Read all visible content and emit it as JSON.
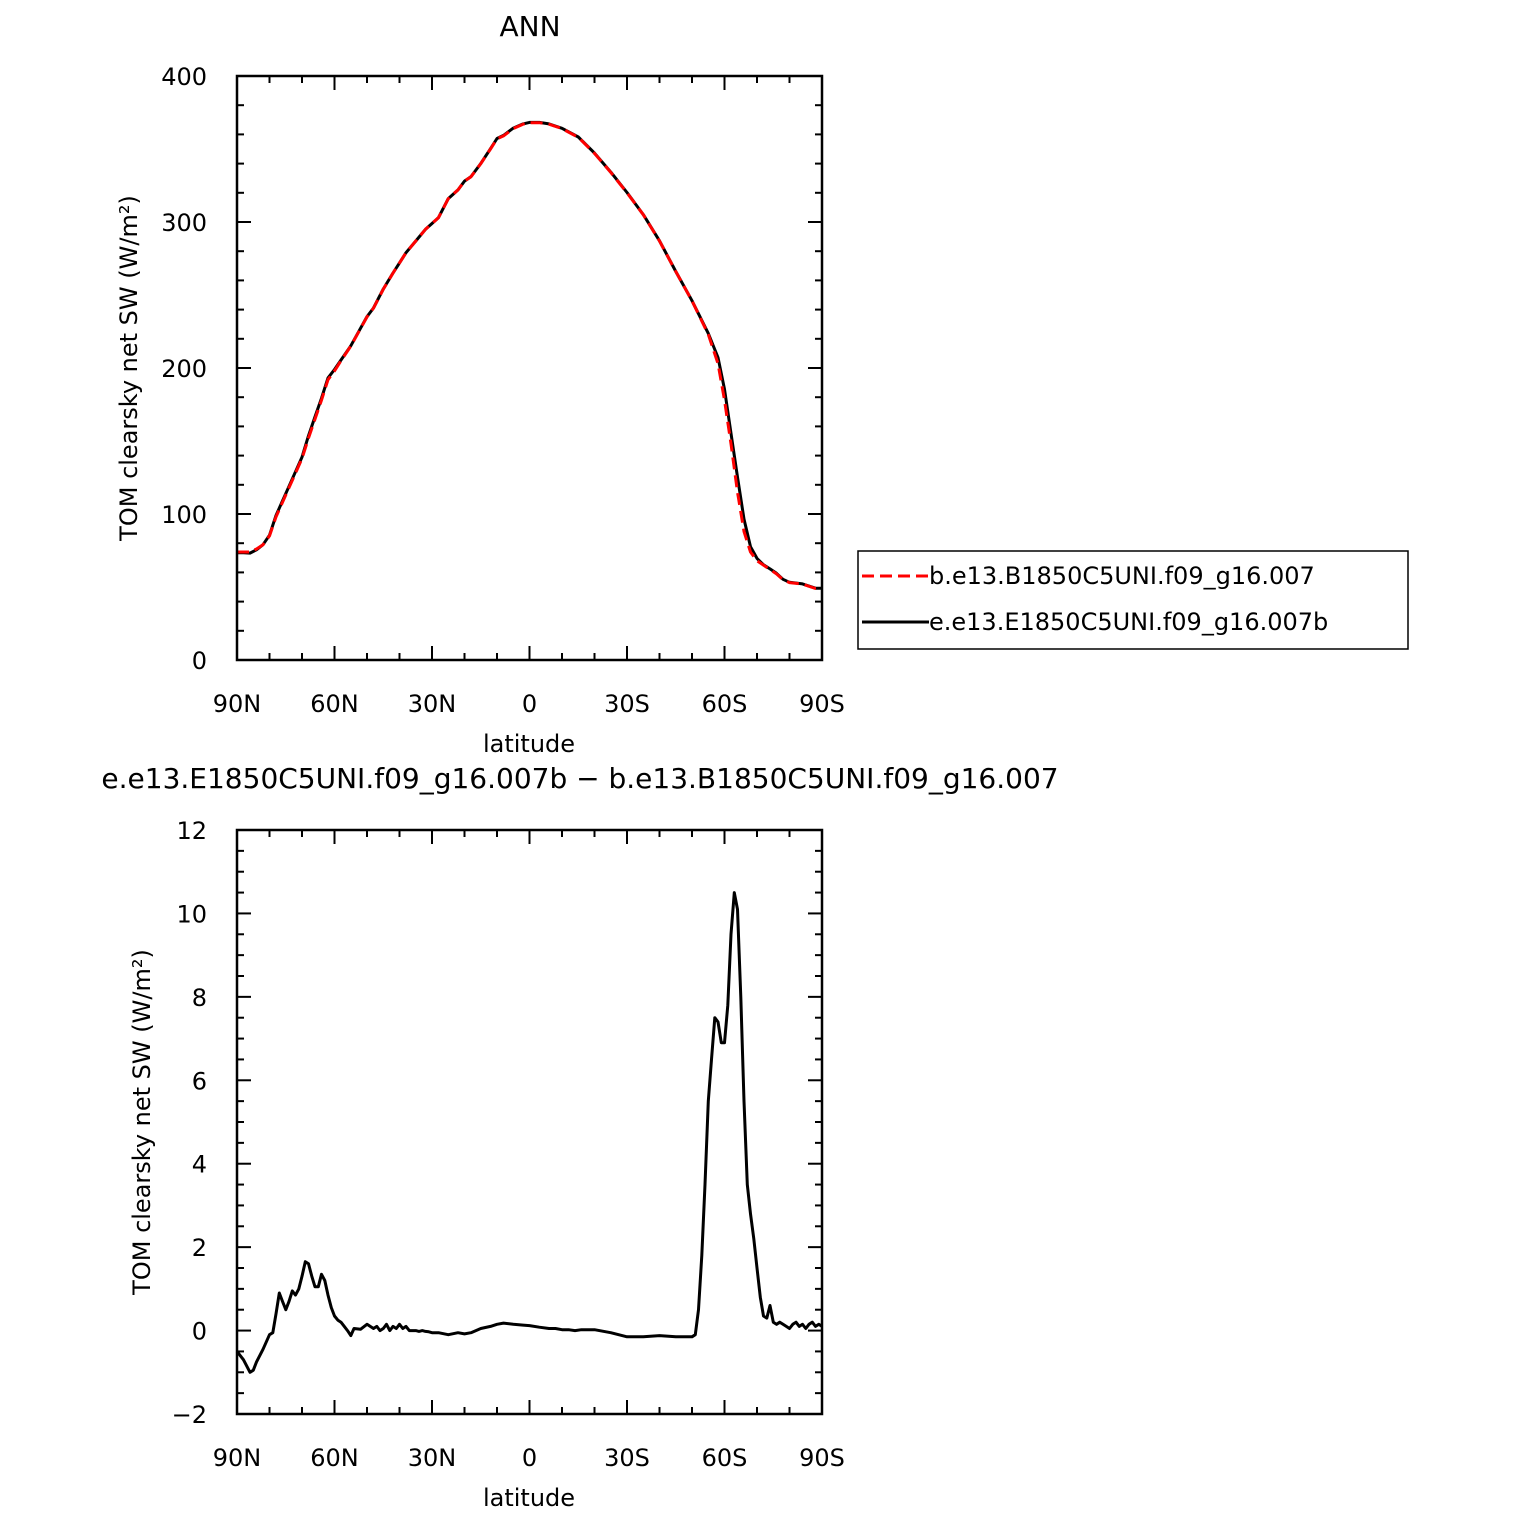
{
  "chart_data": [
    {
      "type": "line",
      "title": "ANN",
      "xlabel": "latitude",
      "ylabel": "TOM clearsky net SW (W/m²)",
      "x_ticks": [
        "90N",
        "60N",
        "30N",
        "0",
        "30S",
        "60S",
        "90S"
      ],
      "y_ticks": [
        "0",
        "100",
        "200",
        "300",
        "400"
      ],
      "xlim": [
        90,
        -90
      ],
      "ylim": [
        0,
        400
      ],
      "legend_position": "right",
      "series": [
        {
          "name": "b.e13.B1850C5UNI.f09_g16.007",
          "color": "#ff0000",
          "dash": "dashed",
          "x": [
            90,
            88,
            86,
            84,
            82,
            80,
            78,
            76,
            74,
            72,
            70,
            68,
            66,
            64,
            62,
            60,
            58,
            55,
            52,
            50,
            48,
            45,
            42,
            40,
            38,
            35,
            32,
            30,
            28,
            25,
            22,
            20,
            18,
            15,
            12,
            10,
            8,
            5,
            2,
            0,
            -3,
            -6,
            -10,
            -15,
            -20,
            -25,
            -30,
            -35,
            -40,
            -45,
            -50,
            -55,
            -58,
            -60,
            -62,
            -64,
            -66,
            -68,
            -70,
            -72,
            -74,
            -76,
            -78,
            -80,
            -84,
            -88,
            -90
          ],
          "y": [
            74,
            74,
            74,
            76,
            79,
            85,
            98,
            108,
            118,
            128,
            138,
            152,
            165,
            178,
            192,
            198,
            205,
            215,
            227,
            235,
            241,
            254,
            265,
            272,
            279,
            287,
            295,
            299,
            303,
            316,
            322,
            328,
            331,
            340,
            350,
            357,
            359,
            364,
            367,
            368,
            368,
            367,
            364,
            358,
            347,
            334,
            320,
            305,
            287,
            266,
            246,
            223,
            203,
            178,
            148,
            115,
            88,
            74,
            68,
            65,
            62,
            59,
            55,
            53,
            52,
            49,
            49
          ]
        },
        {
          "name": "e.e13.E1850C5UNI.f09_g16.007b",
          "color": "#000000",
          "dash": "solid",
          "x": [
            90,
            88,
            86,
            84,
            82,
            80,
            78,
            76,
            74,
            72,
            70,
            68,
            66,
            64,
            62,
            60,
            58,
            55,
            52,
            50,
            48,
            45,
            42,
            40,
            38,
            35,
            32,
            30,
            28,
            25,
            22,
            20,
            18,
            15,
            12,
            10,
            8,
            5,
            2,
            0,
            -3,
            -6,
            -10,
            -15,
            -20,
            -25,
            -30,
            -35,
            -40,
            -45,
            -50,
            -55,
            -58,
            -60,
            -62,
            -64,
            -66,
            -68,
            -70,
            -72,
            -74,
            -76,
            -78,
            -80,
            -84,
            -88,
            -90
          ],
          "y": [
            73.5,
            73.5,
            73.2,
            75.5,
            79,
            85.5,
            99,
            109,
            119,
            129,
            139,
            153.6,
            166.6,
            179.3,
            193.2,
            199,
            205.5,
            215.2,
            227.2,
            235.2,
            241.1,
            254.1,
            265.1,
            272,
            279,
            287,
            295,
            299,
            303,
            316,
            322,
            328,
            331.1,
            340.1,
            350.2,
            357.2,
            359.3,
            364.3,
            367.2,
            368.2,
            368.2,
            367.2,
            364.2,
            358.2,
            347.2,
            334.2,
            320.2,
            305.1,
            287.1,
            266.1,
            246.1,
            223.7,
            207.2,
            185.5,
            155.2,
            125.3,
            96.5,
            77.6,
            69.6,
            65.2,
            62.4,
            59.4,
            55.3,
            53.2,
            52.1,
            49.2,
            49.1
          ]
        }
      ]
    },
    {
      "type": "line",
      "title": "e.e13.E1850C5UNI.f09_g16.007b − b.e13.B1850C5UNI.f09_g16.007",
      "xlabel": "latitude",
      "ylabel": "TOM clearsky net SW (W/m²)",
      "x_ticks": [
        "90N",
        "60N",
        "30N",
        "0",
        "30S",
        "60S",
        "90S"
      ],
      "y_ticks": [
        "−2",
        "0",
        "2",
        "4",
        "6",
        "8",
        "10",
        "12"
      ],
      "xlim": [
        90,
        -90
      ],
      "ylim": [
        -2,
        12
      ],
      "series": [
        {
          "color": "#000000",
          "dash": "solid",
          "x": [
            90,
            88,
            86,
            85,
            84,
            82,
            80,
            79,
            78,
            77,
            76,
            75,
            74,
            73,
            72,
            71,
            70,
            69,
            68,
            67,
            66,
            65,
            64,
            63,
            62,
            61,
            60,
            59,
            58,
            57,
            56,
            55,
            54,
            52,
            50,
            48,
            47,
            46,
            45,
            44,
            43,
            42,
            41,
            40,
            39,
            38,
            37,
            36,
            35,
            34,
            33,
            32,
            31,
            30,
            28,
            25,
            22,
            20,
            18,
            15,
            12,
            10,
            8,
            5,
            2,
            0,
            -3,
            -6,
            -8,
            -10,
            -12,
            -14,
            -16,
            -20,
            -25,
            -30,
            -35,
            -40,
            -45,
            -48,
            -50,
            -51,
            -52,
            -53,
            -54,
            -55,
            -56,
            -57,
            -58,
            -59,
            -60,
            -61,
            -62,
            -63,
            -64,
            -65,
            -66,
            -67,
            -68,
            -69,
            -70,
            -71,
            -72,
            -73,
            -74,
            -75,
            -76,
            -77,
            -78,
            -79,
            -80,
            -81,
            -82,
            -83,
            -84,
            -85,
            -86,
            -87,
            -88,
            -89,
            -90
          ],
          "y": [
            -0.5,
            -0.7,
            -1.0,
            -0.95,
            -0.75,
            -0.45,
            -0.1,
            -0.05,
            0.4,
            0.9,
            0.7,
            0.5,
            0.7,
            0.95,
            0.85,
            1.0,
            1.3,
            1.65,
            1.6,
            1.3,
            1.05,
            1.05,
            1.35,
            1.2,
            0.85,
            0.55,
            0.35,
            0.25,
            0.2,
            0.1,
            0.0,
            -0.12,
            0.05,
            0.03,
            0.15,
            0.05,
            0.1,
            0.0,
            0.05,
            0.15,
            0.0,
            0.1,
            0.05,
            0.15,
            0.05,
            0.1,
            0.0,
            0.0,
            0.0,
            -0.02,
            0.0,
            -0.02,
            -0.03,
            -0.05,
            -0.05,
            -0.1,
            -0.05,
            -0.08,
            -0.05,
            0.05,
            0.1,
            0.15,
            0.18,
            0.15,
            0.13,
            0.12,
            0.08,
            0.05,
            0.05,
            0.02,
            0.02,
            0.0,
            0.02,
            0.02,
            -0.05,
            -0.15,
            -0.15,
            -0.12,
            -0.15,
            -0.15,
            -0.15,
            -0.1,
            0.5,
            1.8,
            3.5,
            5.5,
            6.5,
            7.5,
            7.4,
            6.9,
            6.9,
            7.8,
            9.5,
            10.5,
            10.1,
            8.0,
            5.5,
            3.5,
            2.8,
            2.2,
            1.5,
            0.8,
            0.35,
            0.3,
            0.6,
            0.2,
            0.15,
            0.2,
            0.15,
            0.1,
            0.05,
            0.15,
            0.2,
            0.1,
            0.15,
            0.05,
            0.15,
            0.2,
            0.1,
            0.15,
            0.1
          ]
        }
      ]
    }
  ]
}
